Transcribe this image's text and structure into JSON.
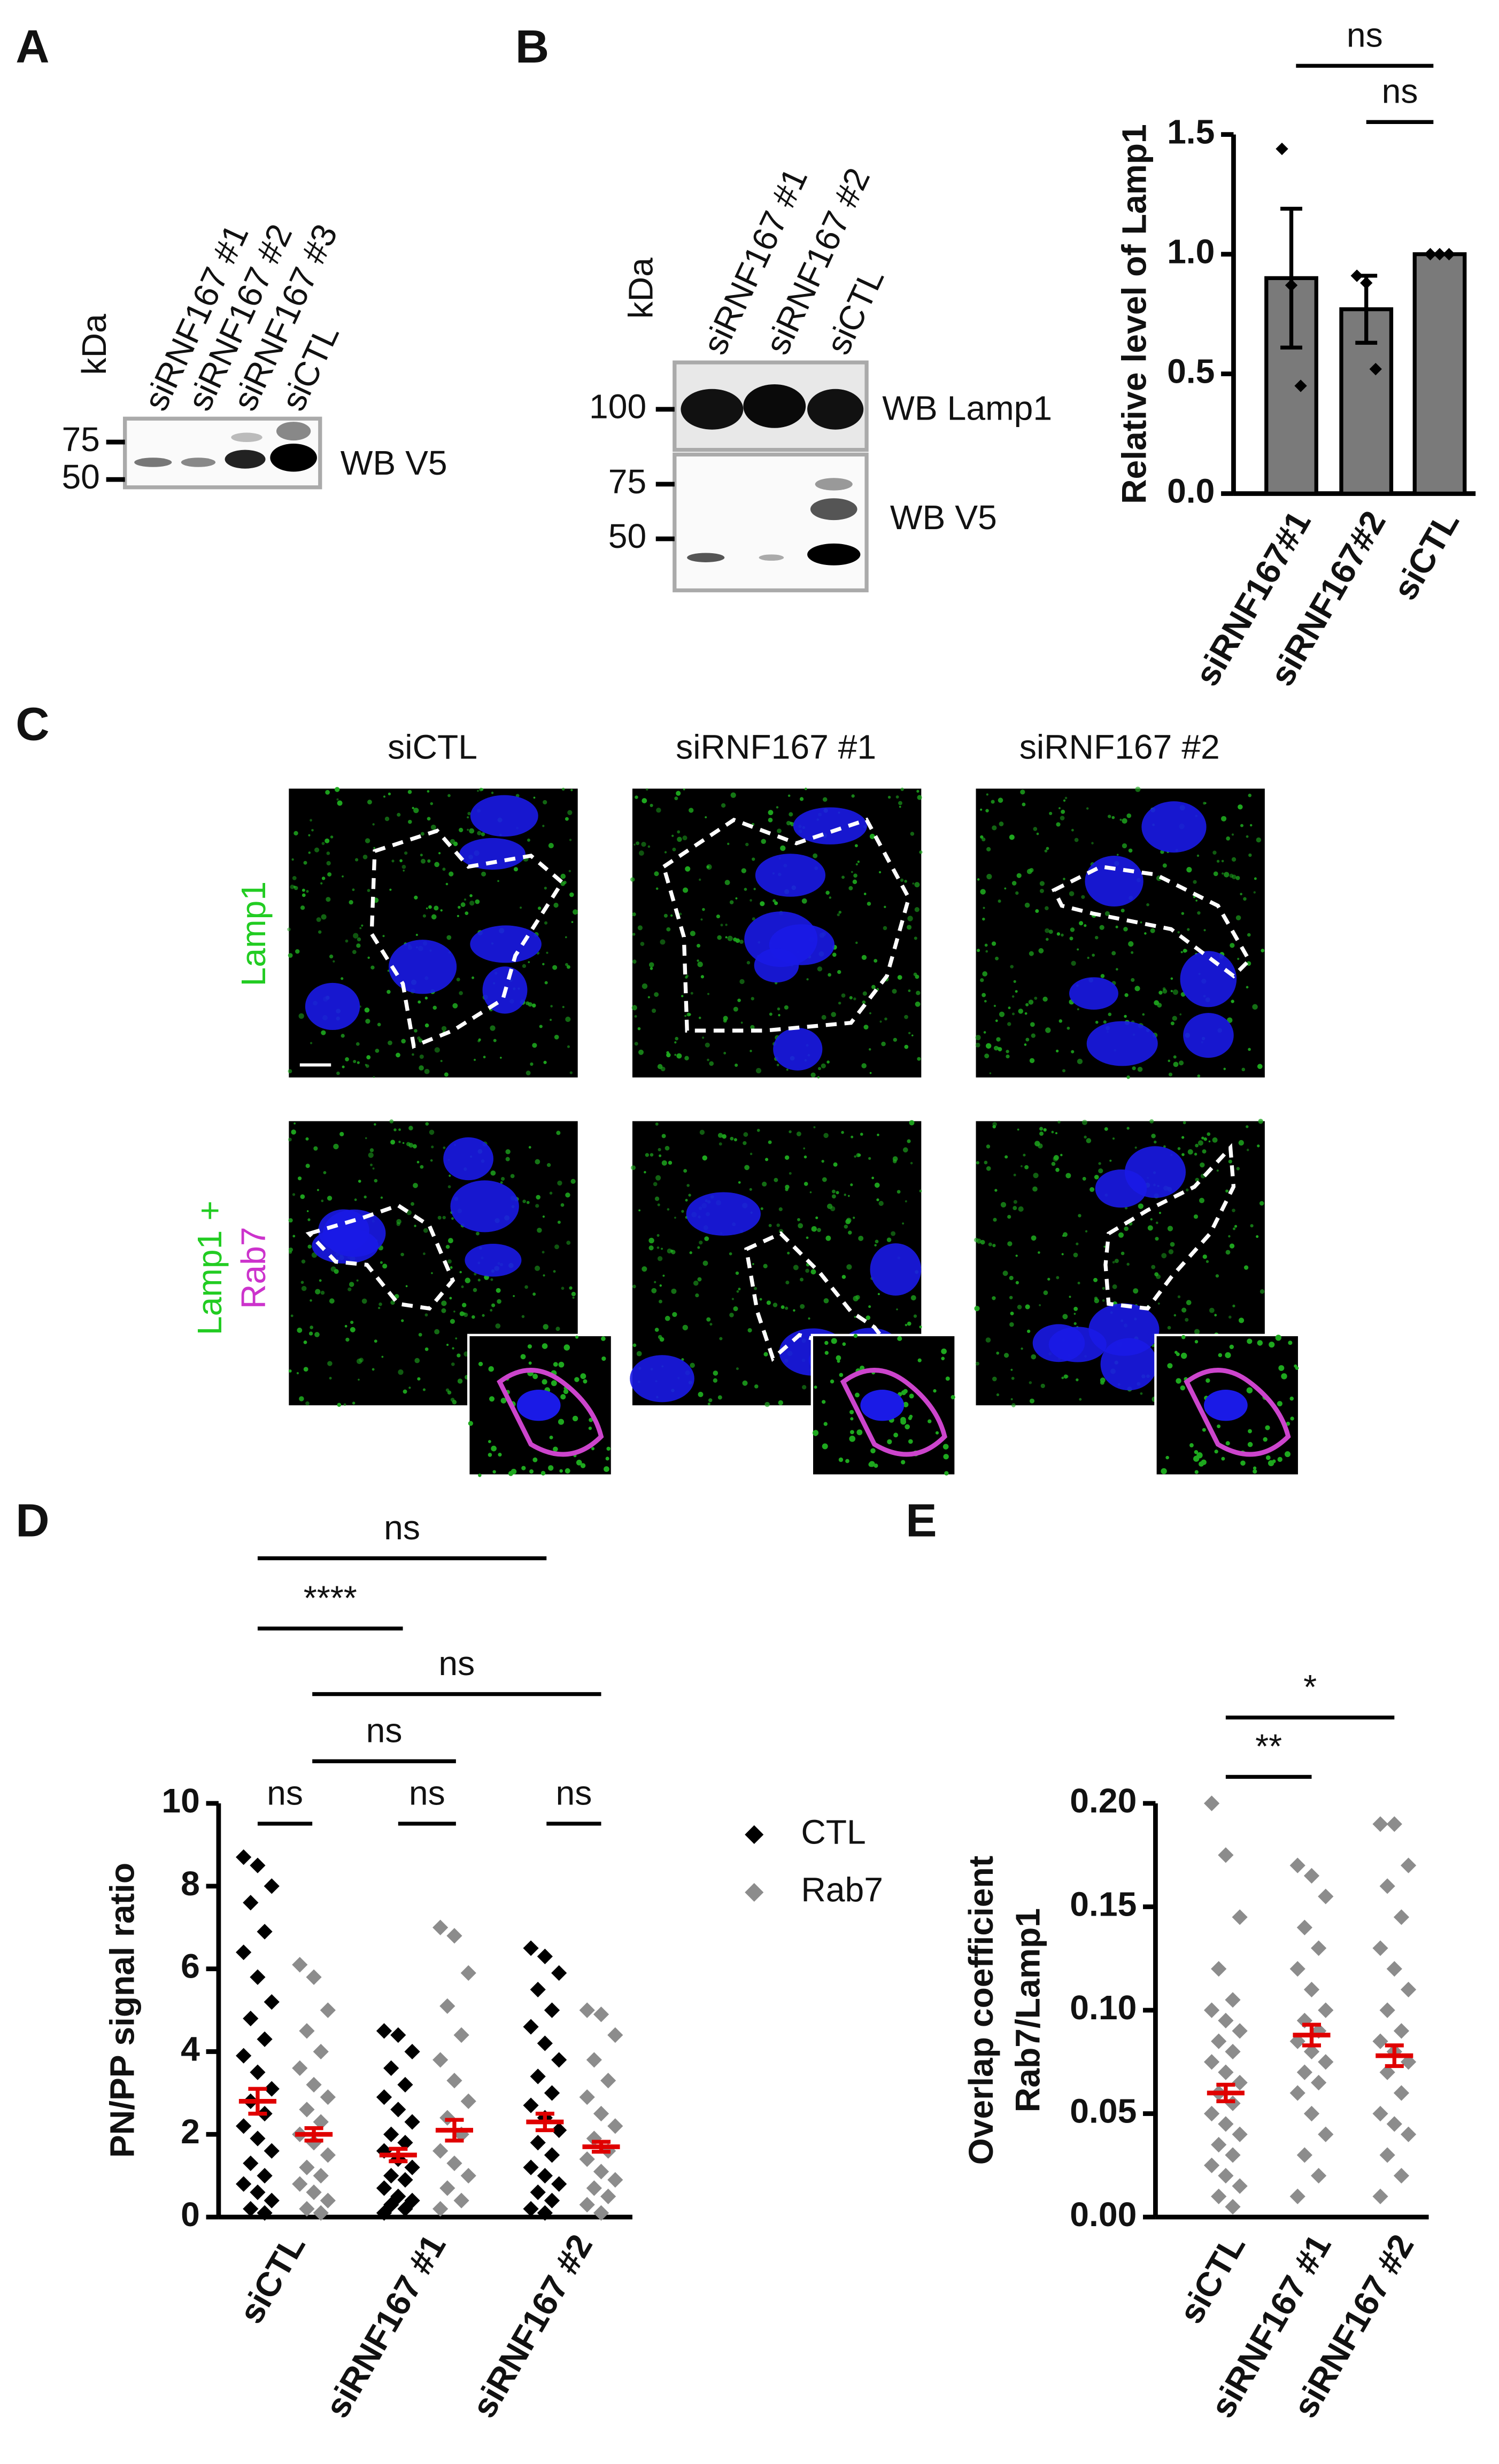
{
  "panel_labels": [
    "A",
    "B",
    "C",
    "D",
    "E"
  ],
  "blot_a": {
    "kda": "kDa",
    "lanes": [
      "siRNF167 #1",
      "siRNF167 #2",
      "siRNF167 #3",
      "siCTL"
    ],
    "markers": [
      "75",
      "50"
    ],
    "labels": [
      "WB V5"
    ]
  },
  "blot_b": {
    "kda": "kDa",
    "lanes": [
      "siRNF167 #1",
      "siRNF167 #2",
      "siCTL"
    ],
    "markers": [
      "100",
      "75",
      "50"
    ],
    "labels": [
      "WB Lamp1",
      "WB V5"
    ]
  },
  "images": {
    "columns": [
      "siCTL",
      "siRNF167 #1",
      "siRNF167 #2"
    ],
    "rows": [
      "Lamp1",
      "Lamp1 +",
      "Rab7"
    ]
  },
  "chart_data": [
    {
      "type": "bar",
      "y_label": "Relative level of Lamp1",
      "categories": [
        "siRNF167#1",
        "siRNF167#2",
        "siCTL"
      ],
      "values": [
        0.9,
        0.77,
        1.0
      ],
      "errors": [
        0.29,
        0.14,
        0.0
      ],
      "points": [
        [
          1.44,
          0.87,
          0.45
        ],
        [
          0.91,
          0.88,
          0.52
        ],
        [
          1.0,
          1.0,
          1.0
        ]
      ],
      "color": "#7a7a7a",
      "ylim": [
        0,
        1.5
      ],
      "yticks": [
        {
          "value": 0,
          "label": "0.0"
        },
        {
          "value": 0.5,
          "label": "0.5"
        },
        {
          "value": 1,
          "label": "1.0"
        },
        {
          "value": 1.5,
          "label": "1.5"
        }
      ],
      "annotations": [
        "ns",
        "ns"
      ]
    },
    {
      "type": "strip",
      "y_label": "PN/PP signal ratio",
      "categories": [
        "siCTL",
        "siRNF167 #1",
        "siRNF167 #2"
      ],
      "series": [
        {
          "name": "CTL",
          "color": "#000000",
          "values": [
            [
              8.7,
              8.5,
              8.0,
              7.6,
              6.9,
              6.4,
              5.8,
              5.2,
              4.8,
              4.3,
              3.9,
              3.5,
              3.1,
              2.8,
              2.5,
              2.2,
              1.9,
              1.6,
              1.3,
              1.0,
              0.8,
              0.6,
              0.4,
              0.2,
              0.1
            ],
            [
              4.5,
              4.4,
              4.0,
              3.6,
              3.2,
              2.9,
              2.6,
              2.3,
              2.0,
              1.8,
              1.6,
              1.4,
              1.2,
              1.0,
              0.9,
              0.7,
              0.5,
              0.4,
              0.3,
              0.2,
              0.1
            ],
            [
              6.5,
              6.3,
              5.9,
              5.5,
              5.0,
              4.6,
              4.2,
              3.8,
              3.4,
              3.0,
              2.7,
              2.4,
              2.1,
              1.8,
              1.5,
              1.2,
              1.0,
              0.8,
              0.6,
              0.4,
              0.2,
              0.1
            ]
          ],
          "mean": [
            2.8,
            1.5,
            2.3
          ],
          "sem": [
            0.3,
            0.15,
            0.2
          ]
        },
        {
          "name": "Rab7",
          "color": "#8c8c8c",
          "values": [
            [
              6.1,
              5.8,
              5.0,
              4.5,
              4.0,
              3.6,
              3.2,
              2.9,
              2.6,
              2.3,
              2.0,
              1.8,
              1.5,
              1.2,
              1.0,
              0.8,
              0.6,
              0.4,
              0.2,
              0.1
            ],
            [
              7.0,
              6.8,
              5.9,
              5.1,
              4.4,
              3.8,
              3.3,
              2.8,
              2.4,
              2.0,
              1.6,
              1.3,
              1.0,
              0.7,
              0.4,
              0.2
            ],
            [
              5.0,
              4.9,
              4.4,
              3.8,
              3.3,
              2.9,
              2.5,
              2.2,
              1.9,
              1.6,
              1.4,
              1.1,
              0.9,
              0.7,
              0.5,
              0.3,
              0.1
            ]
          ],
          "mean": [
            2.0,
            2.1,
            1.7
          ],
          "sem": [
            0.15,
            0.25,
            0.12
          ]
        }
      ],
      "error_color": "#e00000",
      "ylim": [
        0,
        10
      ],
      "yticks": [
        0,
        2,
        4,
        6,
        8,
        10
      ],
      "annotations": [
        "ns",
        "****",
        "ns",
        "ns",
        "ns",
        "ns",
        "ns"
      ]
    },
    {
      "type": "strip",
      "y_label": [
        "Overlap coefficient",
        "Rab7/Lamp1"
      ],
      "categories": [
        "siCTL",
        "siRNF167 #1",
        "siRNF167 #2"
      ],
      "series": [
        {
          "name": "Rab7/Lamp1",
          "color": "#8c8c8c",
          "values": [
            [
              0.2,
              0.175,
              0.145,
              0.12,
              0.105,
              0.1,
              0.095,
              0.09,
              0.085,
              0.08,
              0.075,
              0.07,
              0.065,
              0.06,
              0.055,
              0.05,
              0.045,
              0.04,
              0.035,
              0.03,
              0.025,
              0.02,
              0.015,
              0.01,
              0.005
            ],
            [
              0.17,
              0.165,
              0.155,
              0.14,
              0.13,
              0.12,
              0.11,
              0.1,
              0.095,
              0.09,
              0.085,
              0.08,
              0.075,
              0.07,
              0.065,
              0.06,
              0.05,
              0.04,
              0.03,
              0.02,
              0.01
            ],
            [
              0.19,
              0.19,
              0.17,
              0.16,
              0.145,
              0.13,
              0.12,
              0.11,
              0.1,
              0.09,
              0.085,
              0.08,
              0.075,
              0.07,
              0.06,
              0.05,
              0.045,
              0.04,
              0.03,
              0.02,
              0.01
            ]
          ],
          "mean": [
            0.06,
            0.088,
            0.078
          ],
          "sem": [
            0.004,
            0.005,
            0.005
          ]
        }
      ],
      "error_color": "#e00000",
      "ylim": [
        0,
        0.2
      ],
      "yticks": [
        {
          "value": 0,
          "label": "0.00"
        },
        {
          "value": 0.05,
          "label": "0.05"
        },
        {
          "value": 0.1,
          "label": "0.10"
        },
        {
          "value": 0.15,
          "label": "0.15"
        },
        {
          "value": 0.2,
          "label": "0.20"
        }
      ],
      "annotations": [
        "**",
        "*"
      ]
    }
  ]
}
